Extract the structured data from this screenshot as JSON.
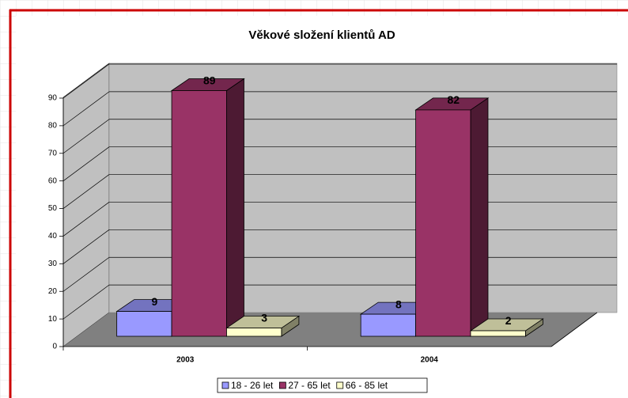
{
  "chart_data": {
    "type": "bar3d",
    "title": "Věkové složení klientů AD",
    "categories": [
      "2003",
      "2004"
    ],
    "series": [
      {
        "name": "18 - 26 let",
        "color": "#9999ff",
        "values": [
          9,
          8
        ]
      },
      {
        "name": "27 - 65 let",
        "color": "#993366",
        "values": [
          89,
          82
        ]
      },
      {
        "name": "66 - 85 let",
        "color": "#ffffcc",
        "values": [
          3,
          2
        ]
      }
    ],
    "ylim": [
      0,
      90
    ],
    "yticks": [
      0,
      10,
      20,
      30,
      40,
      50,
      60,
      70,
      80,
      90
    ],
    "grid": true,
    "legend": "bottom"
  }
}
